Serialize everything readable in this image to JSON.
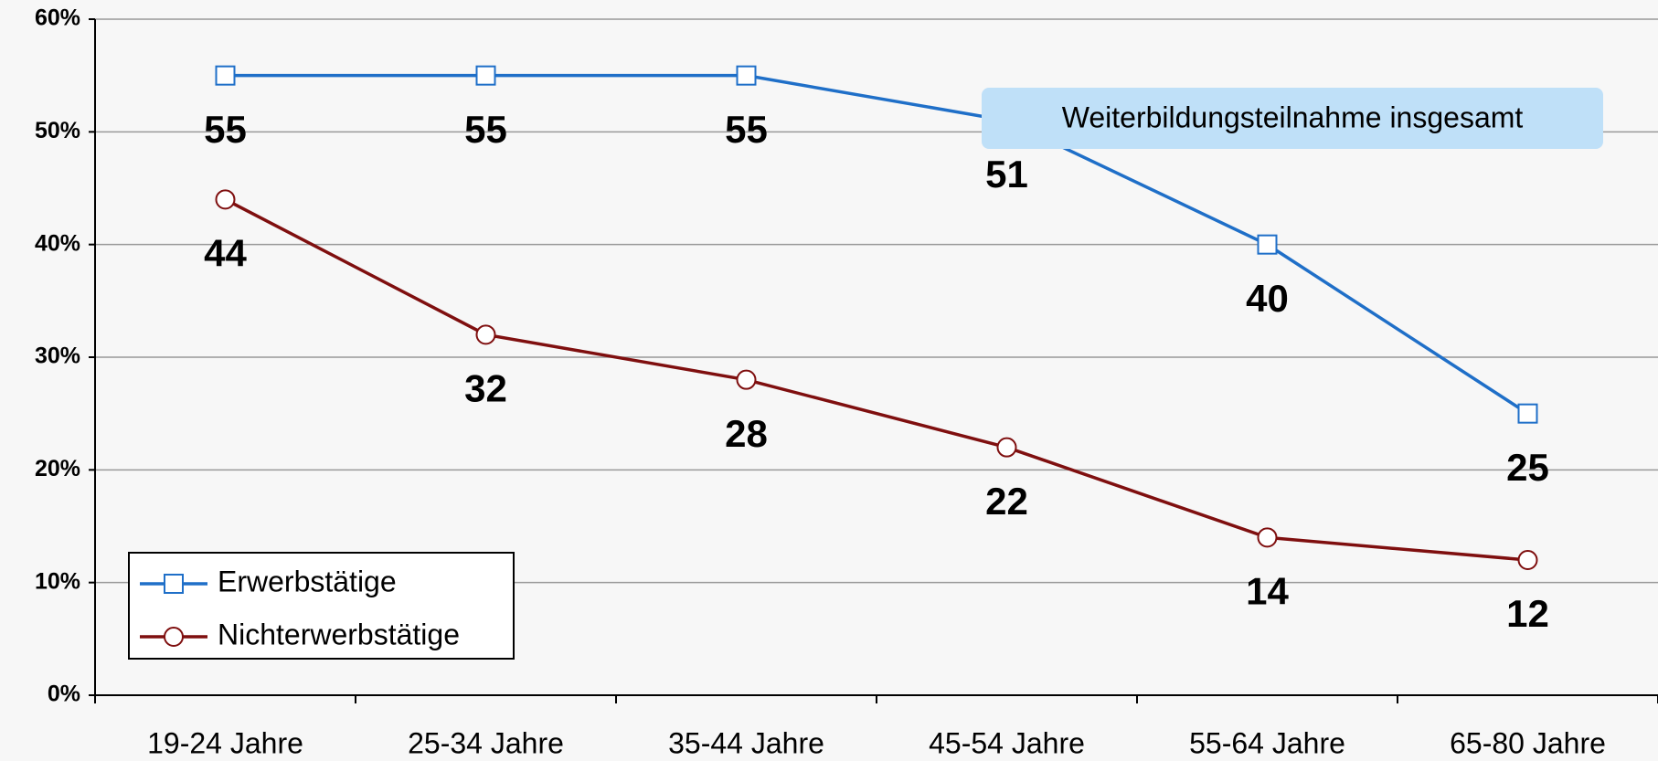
{
  "chart_data": {
    "type": "line",
    "categories": [
      "19-24 Jahre",
      "25-34 Jahre",
      "35-44 Jahre",
      "45-54 Jahre",
      "55-64 Jahre",
      "65-80 Jahre"
    ],
    "series": [
      {
        "name": "Erwerbstätige",
        "color": "#1f6fc8",
        "marker": "square",
        "values": [
          55,
          55,
          55,
          51,
          40,
          25
        ]
      },
      {
        "name": "Nichterwerbstätige",
        "color": "#7f0f0f",
        "marker": "circle",
        "values": [
          44,
          32,
          28,
          22,
          14,
          12
        ]
      }
    ],
    "annotation": "Weiterbildungsteilnahme insgesamt",
    "ylim": [
      0,
      60
    ],
    "yticks": [
      {
        "value": 0,
        "label": "0%"
      },
      {
        "value": 10,
        "label": "10%"
      },
      {
        "value": 20,
        "label": "20%"
      },
      {
        "value": 30,
        "label": "30%"
      },
      {
        "value": 40,
        "label": "40%"
      },
      {
        "value": 50,
        "label": "50%"
      },
      {
        "value": 60,
        "label": "60%"
      }
    ],
    "grid": true,
    "legend": "lower left"
  }
}
